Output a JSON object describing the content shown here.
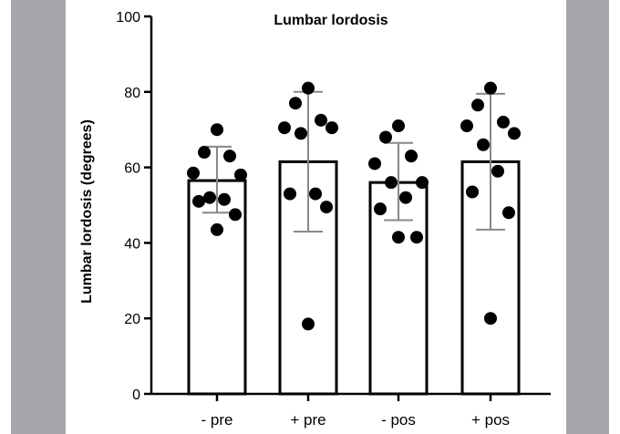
{
  "chart_data": {
    "type": "bar",
    "title": "Lumbar lordosis",
    "xlabel": "",
    "ylabel": "Lumbar lordosis (degrees)",
    "ylim": [
      0,
      100
    ],
    "yticks": [
      "0",
      "20",
      "40",
      "60",
      "80",
      "100"
    ],
    "categories": [
      "- pre",
      "+ pre",
      "- pos",
      "+ pos"
    ],
    "values": [
      56.5,
      61.5,
      56.0,
      61.5
    ],
    "error_bars": [
      {
        "low": 48,
        "high": 65.5
      },
      {
        "low": 43,
        "high": 80
      },
      {
        "low": 46,
        "high": 66.5
      },
      {
        "low": 43.5,
        "high": 79.5
      }
    ],
    "points": [
      [
        70,
        63,
        64,
        58,
        58.5,
        52,
        51,
        51.5,
        47.5,
        43.5
      ],
      [
        81,
        77,
        72.5,
        69,
        70.5,
        70.5,
        53,
        53,
        49.5,
        18.5
      ],
      [
        71,
        68,
        63,
        61,
        56,
        56,
        52,
        49,
        41.5,
        41.5
      ],
      [
        81,
        76.5,
        72,
        71,
        69,
        66,
        59,
        53.5,
        48,
        20
      ]
    ],
    "colors": {
      "bar_fill": "#ffffff",
      "bar_edge": "#000000",
      "dot": "#000000",
      "error": "#888888",
      "panel": "#a6a7aa"
    },
    "grid": false,
    "legend": "none"
  }
}
